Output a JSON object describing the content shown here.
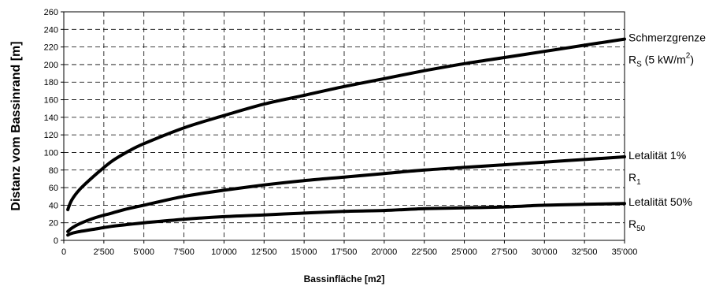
{
  "chart_data": {
    "type": "line",
    "xlabel": "Bassinfläche [m2]",
    "ylabel": "Distanz vom Bassinrand [m]",
    "xlim": [
      0,
      35000
    ],
    "ylim": [
      0,
      260
    ],
    "x_ticks": [
      "0",
      "2'500",
      "5'000",
      "7'500",
      "10'000",
      "12'500",
      "15'000",
      "17'500",
      "20'000",
      "22'500",
      "25'000",
      "27'500",
      "30'000",
      "32'500",
      "35'000"
    ],
    "y_ticks": [
      "0",
      "20",
      "40",
      "60",
      "80",
      "100",
      "120",
      "140",
      "160",
      "180",
      "200",
      "220",
      "240",
      "260"
    ],
    "grid": true,
    "series": [
      {
        "name_line1": "Schmerzgrenze",
        "name_line2_main": "R",
        "name_line2_sub": "S",
        "name_line2_rest": " (5 kW/m",
        "name_line2_sup": "2",
        "name_line2_end": ")",
        "x": [
          250,
          500,
          1000,
          2000,
          3000,
          4000,
          5000,
          7500,
          10000,
          12500,
          15000,
          17500,
          20000,
          22500,
          25000,
          27500,
          30000,
          32500,
          35000
        ],
        "y": [
          35,
          46,
          58,
          75,
          90,
          101,
          110,
          128,
          142,
          155,
          165,
          175,
          184,
          193,
          201,
          208,
          215,
          222,
          229
        ]
      },
      {
        "name_line1": "Letalität 1%",
        "name_line2_main": "R",
        "name_line2_sub": "1",
        "x": [
          250,
          500,
          1000,
          2000,
          3000,
          4000,
          5000,
          7500,
          10000,
          12500,
          15000,
          17500,
          20000,
          22500,
          25000,
          27500,
          30000,
          32500,
          35000
        ],
        "y": [
          10,
          14,
          19,
          26,
          31,
          36,
          40,
          50,
          57,
          63,
          68,
          72,
          76,
          80,
          83,
          86,
          89,
          92,
          95
        ]
      },
      {
        "name_line1": "Letalität 50%",
        "name_line2_main": "R",
        "name_line2_sub": "50",
        "x": [
          250,
          500,
          1000,
          2000,
          3000,
          4000,
          5000,
          7500,
          10000,
          12500,
          15000,
          17500,
          20000,
          22500,
          25000,
          27500,
          30000,
          32500,
          35000
        ],
        "y": [
          6,
          8,
          10,
          13,
          16,
          18,
          20,
          24,
          27,
          29,
          31,
          33,
          34,
          36,
          37,
          38,
          40,
          41,
          42
        ]
      }
    ]
  }
}
